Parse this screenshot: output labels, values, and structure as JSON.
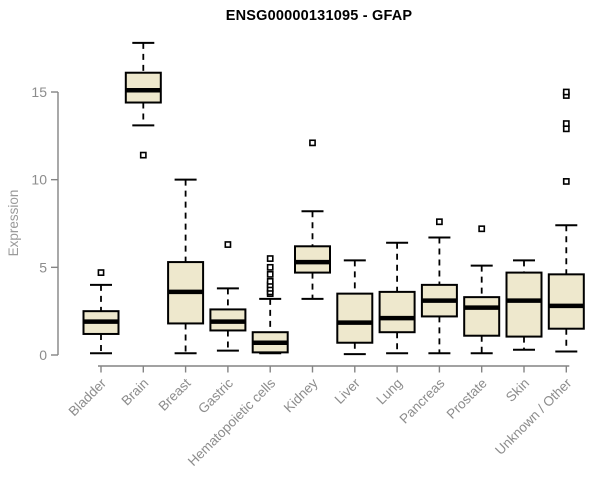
{
  "chart_data": {
    "type": "boxplot",
    "title": "ENSG00000131095 - GFAP",
    "ylabel": "Expression",
    "xlabel": "",
    "yticks": [
      0,
      5,
      10,
      15
    ],
    "ylim": [
      -0.75,
      18.6
    ],
    "grid": false,
    "legend": "none",
    "categories": [
      "Bladder",
      "Brain",
      "Breast",
      "Gastric",
      "Hematopoietic cells",
      "Kidney",
      "Liver",
      "Lung",
      "Pancreas",
      "Prostate",
      "Skin",
      "Unknown / Other"
    ],
    "series": [
      {
        "category": "Bladder",
        "whisker_low": 0.1,
        "q1": 1.2,
        "median": 1.9,
        "q3": 2.5,
        "whisker_high": 4.0,
        "outliers": [
          4.7
        ]
      },
      {
        "category": "Brain",
        "whisker_low": 13.1,
        "q1": 14.4,
        "median": 15.1,
        "q3": 16.1,
        "whisker_high": 17.8,
        "outliers": [
          11.4
        ]
      },
      {
        "category": "Breast",
        "whisker_low": 0.1,
        "q1": 1.8,
        "median": 3.6,
        "q3": 5.3,
        "whisker_high": 10.0,
        "outliers": []
      },
      {
        "category": "Gastric",
        "whisker_low": 0.25,
        "q1": 1.4,
        "median": 1.9,
        "q3": 2.6,
        "whisker_high": 3.8,
        "outliers": [
          6.3
        ]
      },
      {
        "category": "Hematopoietic cells",
        "whisker_low": 0.1,
        "q1": 0.15,
        "median": 0.7,
        "q3": 1.3,
        "whisker_high": 3.2,
        "outliers": [
          3.5,
          3.6,
          3.8,
          4.0,
          4.2,
          4.6,
          5.0,
          5.5
        ]
      },
      {
        "category": "Kidney",
        "whisker_low": 3.2,
        "q1": 4.7,
        "median": 5.3,
        "q3": 6.2,
        "whisker_high": 8.2,
        "outliers": [
          12.1
        ]
      },
      {
        "category": "Liver",
        "whisker_low": 0.05,
        "q1": 0.7,
        "median": 1.85,
        "q3": 3.5,
        "whisker_high": 5.4,
        "outliers": []
      },
      {
        "category": "Lung",
        "whisker_low": 0.1,
        "q1": 1.3,
        "median": 2.1,
        "q3": 3.6,
        "whisker_high": 6.4,
        "outliers": []
      },
      {
        "category": "Pancreas",
        "whisker_low": 0.1,
        "q1": 2.2,
        "median": 3.1,
        "q3": 4.0,
        "whisker_high": 6.7,
        "outliers": [
          7.6
        ]
      },
      {
        "category": "Prostate",
        "whisker_low": 0.1,
        "q1": 1.1,
        "median": 2.7,
        "q3": 3.3,
        "whisker_high": 5.1,
        "outliers": [
          7.2
        ]
      },
      {
        "category": "Skin",
        "whisker_low": 0.3,
        "q1": 1.05,
        "median": 3.1,
        "q3": 4.7,
        "whisker_high": 5.4,
        "outliers": []
      },
      {
        "category": "Unknown / Other",
        "whisker_low": 0.2,
        "q1": 1.5,
        "median": 2.8,
        "q3": 4.6,
        "whisker_high": 7.4,
        "outliers": [
          9.9,
          12.9,
          13.2,
          14.8,
          15.0
        ]
      }
    ],
    "colors": {
      "box_fill": "#EEE8CD",
      "box_border": "#000000",
      "median": "#000000",
      "whisker": "#000000",
      "outlier": "#000000",
      "axis": "#848484",
      "tick_label": "#8c8c8c",
      "axis_title": "#9a9a9a",
      "title": "#000000",
      "background": "#FFFFFF"
    }
  }
}
